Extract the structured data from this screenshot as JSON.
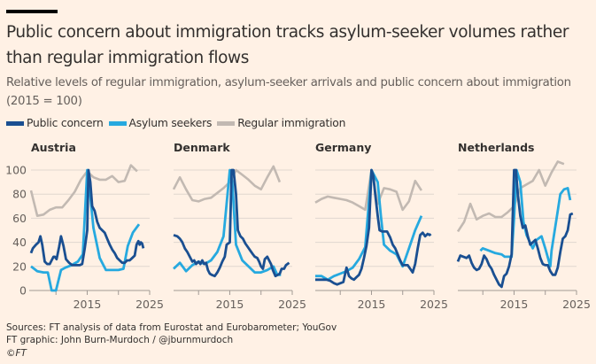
{
  "header": {
    "title": "Public concern about immigration tracks asylum-seeker volumes rather than regular immigration flows",
    "subtitle": "Relative levels of regular immigration, asylum-seeker arrivals and public concern about immigration (2015 = 100)"
  },
  "colors": {
    "public_concern": "#1a4f91",
    "asylum_seekers": "#26a9df",
    "regular_immigration": "#c2b9b2",
    "grid": "#e0d7cf",
    "axis": "#a19a94",
    "background": "#fff1e5"
  },
  "legend": [
    {
      "key": "public_concern",
      "label": "Public concern"
    },
    {
      "key": "asylum_seekers",
      "label": "Asylum seekers"
    },
    {
      "key": "regular_immigration",
      "label": "Regular immigration"
    }
  ],
  "footer": {
    "sources": "Sources: FT analysis of data from Eurostat and Eurobarometer; YouGov",
    "credit": "FT graphic: John Burn-Murdoch / @jburnmurdoch",
    "copyright": "©FT"
  },
  "chart_data": {
    "type": "line",
    "title": "Public concern about immigration tracks asylum-seeker volumes rather than regular immigration flows",
    "subtitle": "Relative levels of regular immigration, asylum-seeker arrivals and public concern about immigration (2015 = 100)",
    "ylim": [
      0,
      100
    ],
    "xlim": [
      2006,
      2025
    ],
    "yticks": [
      0,
      20,
      40,
      60,
      80,
      100
    ],
    "xticks": [
      2010,
      2015,
      2020,
      2025
    ],
    "xtick_labels": [
      "",
      "2015",
      "",
      "2025"
    ],
    "grid": true,
    "legend_position": "top-left",
    "panels": [
      {
        "name": "Austria",
        "show_y_labels": true,
        "series": [
          {
            "key": "regular_immigration",
            "name": "Regular immigration",
            "x": [
              2006,
              2007,
              2008,
              2009,
              2010,
              2011,
              2012,
              2013,
              2014,
              2015,
              2016,
              2017,
              2018,
              2019,
              2020,
              2021,
              2022,
              2023
            ],
            "y": [
              83,
              62,
              63,
              67,
              69,
              69,
              75,
              82,
              92,
              99,
              94,
              92,
              92,
              95,
              90,
              91,
              104,
              99
            ]
          },
          {
            "key": "asylum_seekers",
            "name": "Asylum seekers",
            "x": [
              2006,
              2007,
              2008,
              2008.7,
              2009.3,
              2010,
              2010.8,
              2011.5,
              2012.5,
              2013.5,
              2014.3,
              2015,
              2015.5,
              2016,
              2017,
              2018,
              2019,
              2020,
              2020.8,
              2021.5,
              2022.3,
              2023.3
            ],
            "y": [
              20,
              16,
              15,
              15,
              0,
              0,
              17,
              19,
              21,
              24,
              30,
              100,
              78,
              52,
              27,
              17,
              17,
              17,
              18,
              37,
              48,
              55
            ]
          },
          {
            "key": "public_concern",
            "name": "Public concern",
            "x": [
              2006,
              2006.3,
              2006.8,
              2007.2,
              2007.5,
              2007.8,
              2008.2,
              2008.6,
              2009,
              2009.3,
              2009.6,
              2009.8,
              2010.1,
              2010.5,
              2010.8,
              2011.2,
              2011.6,
              2012.1,
              2012.6,
              2013.2,
              2013.8,
              2014.2,
              2014.6,
              2015.0,
              2015.2,
              2015.5,
              2015.8,
              2016.2,
              2016.6,
              2017,
              2017.4,
              2017.8,
              2018.2,
              2018.6,
              2019,
              2019.4,
              2019.8,
              2020.2,
              2020.6,
              2021,
              2021.4,
              2021.8,
              2022.2,
              2022.6,
              2022.9,
              2023.2,
              2023.4,
              2023.6,
              2023.8,
              2024
            ],
            "y": [
              31,
              35,
              38,
              40,
              45,
              38,
              24,
              22,
              22,
              25,
              28,
              28,
              26,
              36,
              45,
              37,
              26,
              23,
              21,
              21,
              21,
              22,
              35,
              50,
              100,
              90,
              70,
              66,
              57,
              52,
              50,
              48,
              43,
              38,
              34,
              31,
              27,
              25,
              23,
              23,
              25,
              25,
              27,
              29,
              38,
              41,
              38,
              40,
              39,
              35
            ]
          }
        ]
      },
      {
        "name": "Denmark",
        "show_y_labels": false,
        "series": [
          {
            "key": "regular_immigration",
            "name": "Regular immigration",
            "x": [
              2006,
              2007,
              2008,
              2009,
              2010,
              2011,
              2012,
              2013,
              2014,
              2015,
              2016,
              2017,
              2018,
              2019,
              2020,
              2021,
              2022,
              2023
            ],
            "y": [
              84,
              94,
              84,
              75,
              74,
              76,
              77,
              81,
              85,
              90,
              100,
              96,
              92,
              87,
              84,
              94,
              103,
              90
            ]
          },
          {
            "key": "asylum_seekers",
            "name": "Asylum seekers",
            "x": [
              2006,
              2007,
              2008,
              2009,
              2010,
              2011,
              2012,
              2013,
              2014,
              2015,
              2015.4,
              2016,
              2017,
              2018,
              2019,
              2020,
              2021,
              2022,
              2022.6,
              2023.2
            ],
            "y": [
              18,
              23,
              16,
              21,
              24,
              22,
              25,
              32,
              45,
              100,
              90,
              38,
              25,
              20,
              15,
              15,
              17,
              20,
              13,
              13
            ]
          },
          {
            "key": "public_concern",
            "name": "Public concern",
            "x": [
              2006,
              2006.6,
              2007,
              2007.4,
              2007.8,
              2008.2,
              2008.6,
              2009,
              2009.3,
              2009.6,
              2010,
              2010.3,
              2010.6,
              2010.9,
              2011.2,
              2011.5,
              2011.8,
              2012.1,
              2012.6,
              2013,
              2013.4,
              2013.8,
              2014.2,
              2014.5,
              2015,
              2015.3,
              2015.6,
              2016,
              2016.3,
              2016.7,
              2017.1,
              2017.5,
              2017.9,
              2018.3,
              2018.7,
              2019,
              2019.4,
              2019.7,
              2020,
              2020.3,
              2020.6,
              2021,
              2021.3,
              2021.6,
              2021.9,
              2022.3,
              2022.7,
              2023,
              2023.3,
              2023.7,
              2024,
              2024.5
            ],
            "y": [
              46,
              45,
              43,
              40,
              35,
              32,
              28,
              24,
              25,
              22,
              24,
              22,
              25,
              22,
              23,
              17,
              14,
              13,
              12,
              15,
              19,
              24,
              28,
              38,
              40,
              100,
              100,
              80,
              50,
              45,
              43,
              39,
              36,
              33,
              30,
              28,
              27,
              24,
              20,
              18,
              26,
              28,
              25,
              22,
              17,
              12,
              13,
              14,
              18,
              18,
              21,
              23
            ]
          }
        ]
      },
      {
        "name": "Germany",
        "show_y_labels": false,
        "series": [
          {
            "key": "regular_immigration",
            "name": "Regular immigration",
            "x": [
              2006,
              2007,
              2008,
              2009,
              2010,
              2011,
              2012,
              2013,
              2014,
              2015,
              2016,
              2017,
              2018,
              2019,
              2020,
              2021,
              2022,
              2023
            ],
            "y": [
              73,
              76,
              78,
              77,
              76,
              75,
              73,
              70,
              67,
              100,
              72,
              85,
              84,
              82,
              67,
              74,
              91,
              83
            ]
          },
          {
            "key": "asylum_seekers",
            "name": "Asylum seekers",
            "x": [
              2006,
              2007,
              2008,
              2009,
              2010,
              2011,
              2012,
              2013,
              2014,
              2015,
              2016,
              2016.5,
              2017,
              2018,
              2019,
              2020,
              2021,
              2022,
              2023
            ],
            "y": [
              12,
              12,
              9,
              12,
              14,
              16,
              19,
              26,
              36,
              100,
              90,
              62,
              38,
              33,
              30,
              20,
              35,
              50,
              62
            ]
          },
          {
            "key": "public_concern",
            "name": "Public concern",
            "x": [
              2006,
              2006.6,
              2007.2,
              2007.8,
              2008.4,
              2009,
              2009.5,
              2010,
              2010.5,
              2011,
              2011.4,
              2011.8,
              2012.2,
              2012.6,
              2013,
              2013.4,
              2013.8,
              2014.2,
              2014.6,
              2015,
              2015.3,
              2015.6,
              2016,
              2016.3,
              2016.7,
              2017.1,
              2017.5,
              2018,
              2018.4,
              2018.8,
              2019.2,
              2019.6,
              2020,
              2020.4,
              2020.8,
              2021.2,
              2021.6,
              2022,
              2022.4,
              2022.8,
              2023.2,
              2023.6,
              2024,
              2024.3,
              2024.5
            ],
            "y": [
              9,
              9,
              9,
              9,
              8,
              6,
              5,
              6,
              7,
              19,
              12,
              10,
              9,
              11,
              13,
              18,
              27,
              37,
              52,
              100,
              95,
              80,
              62,
              50,
              49,
              49,
              49,
              44,
              38,
              35,
              30,
              25,
              21,
              21,
              21,
              18,
              15,
              22,
              35,
              46,
              48,
              45,
              47,
              46,
              47
            ]
          }
        ]
      },
      {
        "name": "Netherlands",
        "show_y_labels": false,
        "series": [
          {
            "key": "regular_immigration",
            "name": "Regular immigration",
            "x": [
              2006,
              2007,
              2008,
              2009,
              2010,
              2011,
              2012,
              2013,
              2014,
              2015,
              2016,
              2017,
              2018,
              2019,
              2020,
              2021,
              2022,
              2023
            ],
            "y": [
              49,
              57,
              72,
              59,
              62,
              64,
              61,
              61,
              65,
              70,
              85,
              88,
              91,
              100,
              87,
              98,
              107,
              105
            ]
          },
          {
            "key": "asylum_seekers",
            "name": "Asylum seekers",
            "x": [
              2009.6,
              2010,
              2011,
              2012,
              2013,
              2013.5,
              2014,
              2014.6,
              2015,
              2015.4,
              2016,
              2016.5,
              2017,
              2018,
              2018.6,
              2019.4,
              2020,
              2020.8,
              2021,
              2022,
              2022.4,
              2023,
              2023.6,
              2024
            ],
            "y": [
              33,
              35,
              33,
              31,
              30,
              28,
              28,
              28,
              60,
              100,
              90,
              57,
              46,
              35,
              42,
              45,
              35,
              20,
              33,
              66,
              80,
              84,
              85,
              75
            ]
          },
          {
            "key": "public_concern",
            "name": "Public concern",
            "x": [
              2006,
              2006.4,
              2006.9,
              2007.4,
              2007.8,
              2008.2,
              2008.6,
              2009,
              2009.4,
              2009.8,
              2010.2,
              2010.6,
              2011,
              2011.4,
              2011.8,
              2012.2,
              2012.6,
              2013,
              2013.4,
              2013.8,
              2014.2,
              2014.6,
              2015,
              2015.3,
              2015.6,
              2016,
              2016.4,
              2016.8,
              2017.2,
              2017.6,
              2018,
              2018.4,
              2018.8,
              2019.2,
              2019.6,
              2020,
              2020.4,
              2020.8,
              2021.2,
              2021.6,
              2022,
              2022.4,
              2022.8,
              2023.2,
              2023.6,
              2024,
              2024.4
            ],
            "y": [
              24,
              29,
              28,
              27,
              29,
              23,
              19,
              17,
              18,
              22,
              29,
              26,
              21,
              18,
              13,
              9,
              5,
              3,
              12,
              14,
              20,
              30,
              100,
              100,
              80,
              62,
              52,
              54,
              45,
              38,
              40,
              42,
              35,
              27,
              22,
              21,
              21,
              16,
              13,
              13,
              19,
              32,
              43,
              45,
              50,
              63,
              64
            ]
          }
        ]
      }
    ]
  }
}
